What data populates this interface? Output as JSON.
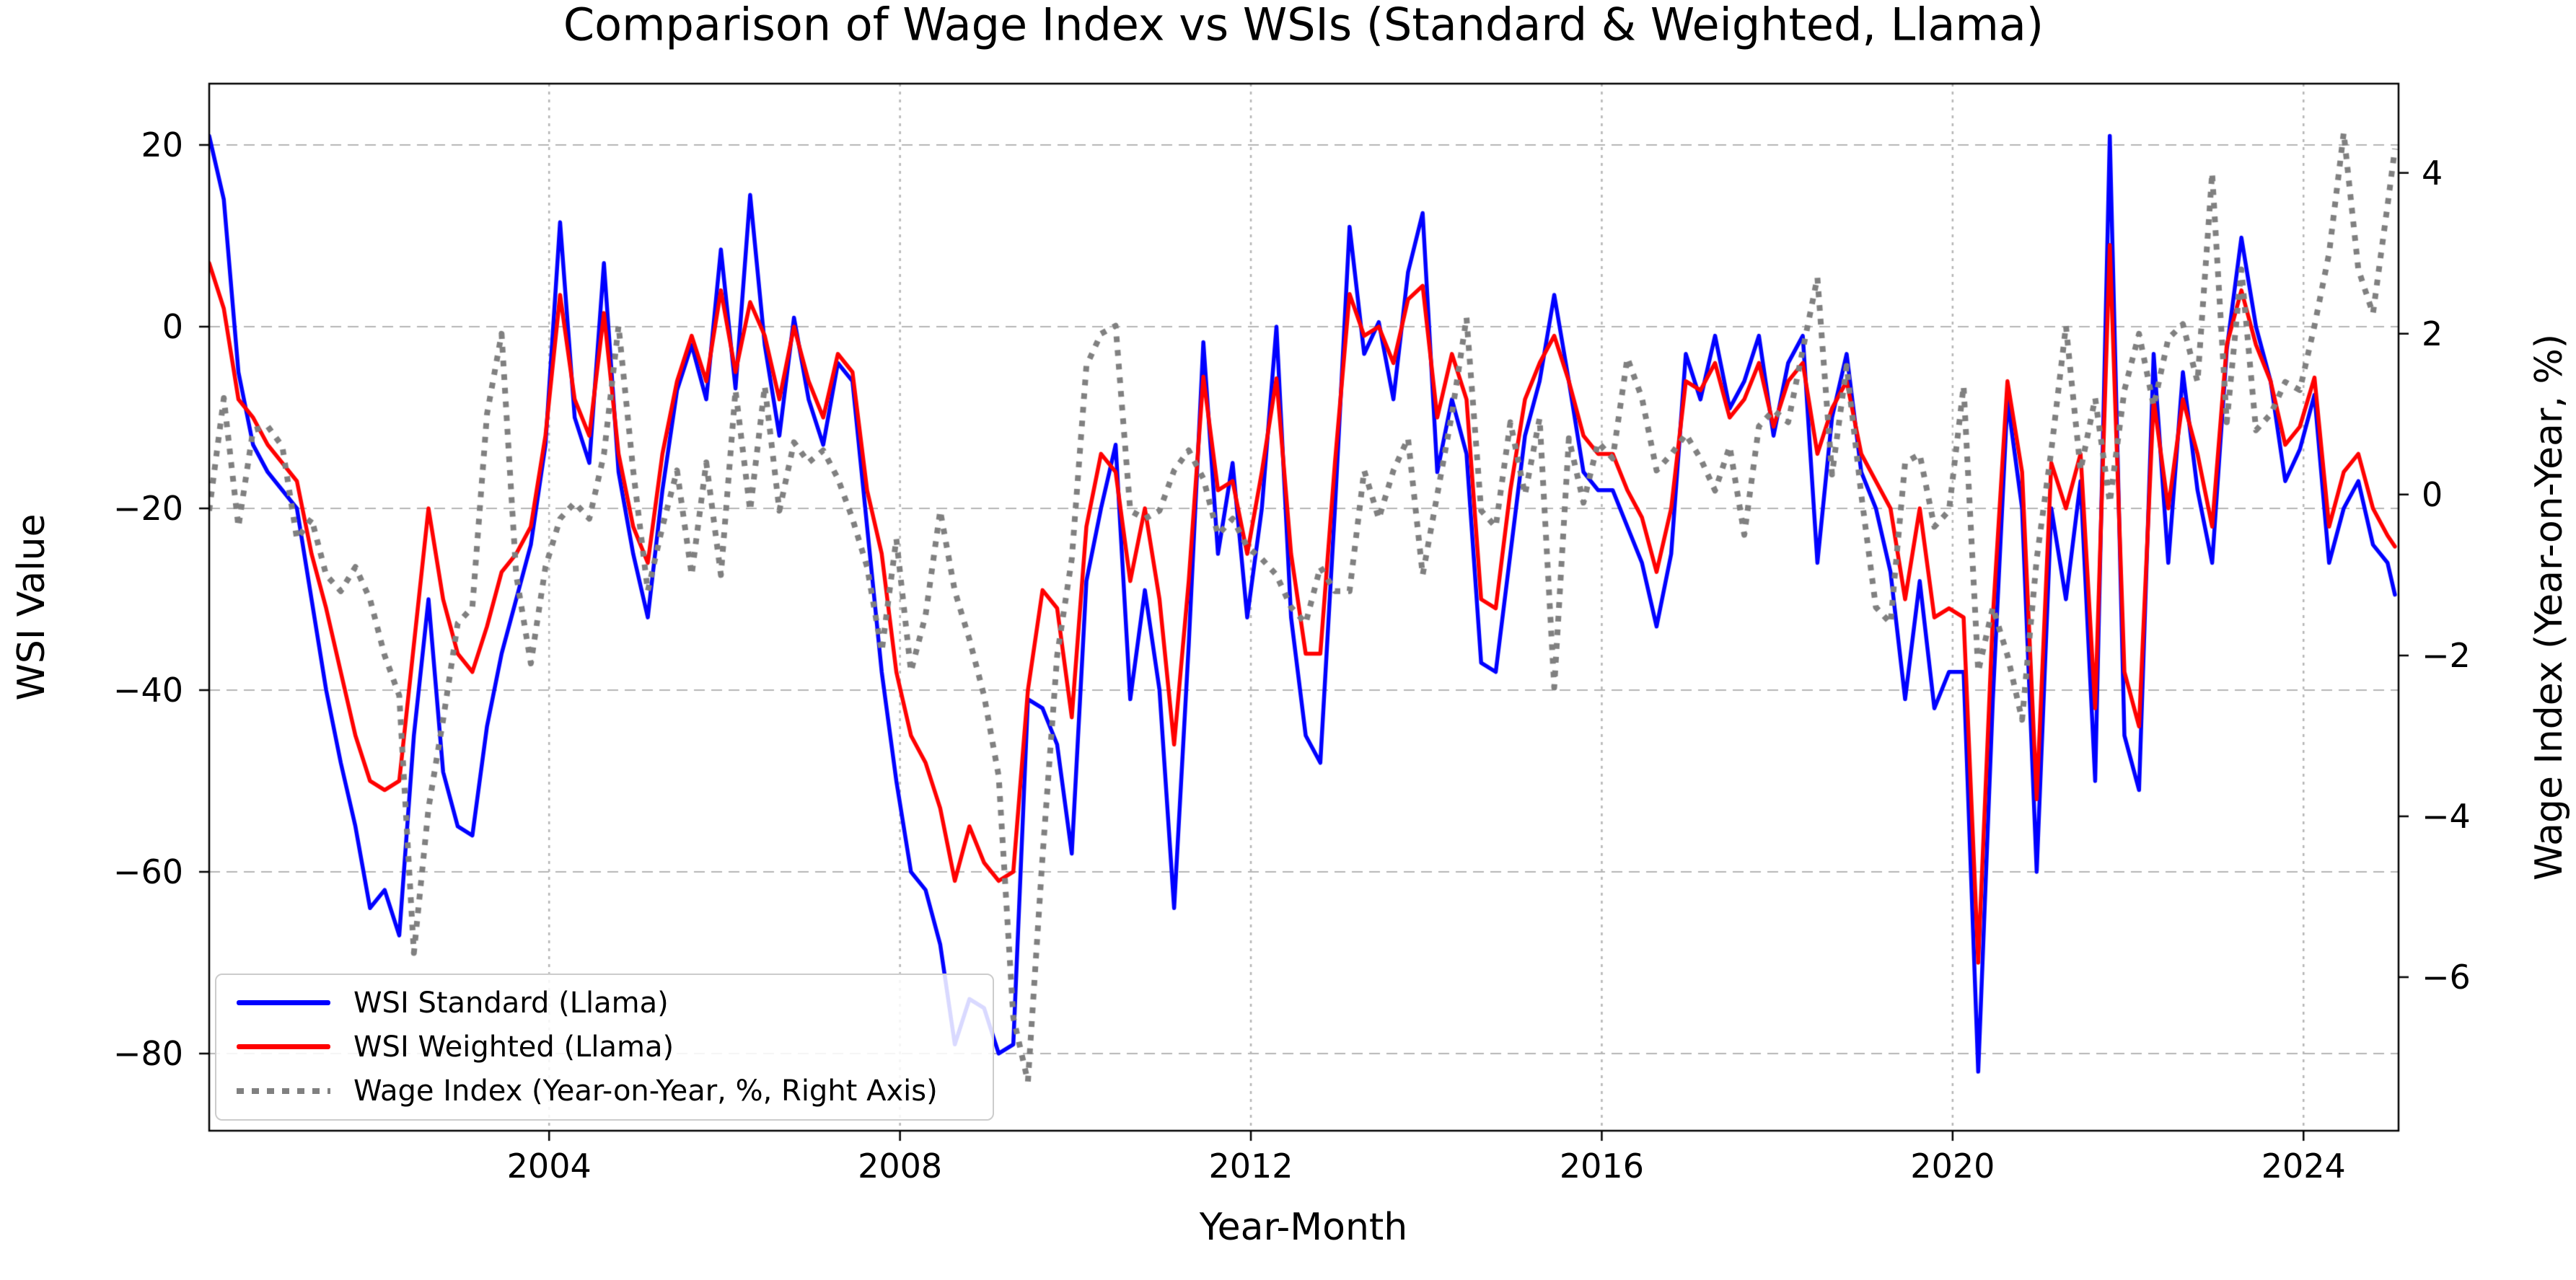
{
  "chart_data": {
    "type": "line",
    "title": "Comparison of Wage Index vs WSIs (Standard & Weighted, Llama)",
    "xlabel": "Year-Month",
    "ylabel_left": "WSI Value",
    "ylabel_right": "Wage Index (Year-on-Year, %)",
    "grid": true,
    "legend_position": "lower left",
    "xlim": [
      2000.125,
      2025.0833
    ],
    "ylim_left": [
      -88.5,
      26.75
    ],
    "ylim_right": [
      -7.91,
      5.11
    ],
    "x_ticks": {
      "values": [
        2004,
        2008,
        2012,
        2016,
        2020,
        2024
      ],
      "labels": [
        "2004",
        "2008",
        "2012",
        "2016",
        "2020",
        "2024"
      ]
    },
    "y_ticks_left": {
      "values": [
        20,
        0,
        -20,
        -40,
        -60,
        -80
      ],
      "labels": [
        "20",
        "0",
        "−20",
        "−40",
        "−60",
        "−80"
      ]
    },
    "y_ticks_right": {
      "values": [
        4,
        2,
        0,
        -2,
        -4,
        -6
      ],
      "labels": [
        "4",
        "2",
        "0",
        "−2",
        "−4",
        "−6"
      ]
    },
    "x": [
      "2000-02",
      "2000-04",
      "2000-06",
      "2000-08",
      "2000-10",
      "2000-12",
      "2001-02",
      "2001-04",
      "2001-06",
      "2001-08",
      "2001-10",
      "2001-12",
      "2002-02",
      "2002-04",
      "2002-06",
      "2002-08",
      "2002-10",
      "2002-12",
      "2003-02",
      "2003-04",
      "2003-06",
      "2003-08",
      "2003-10",
      "2003-12",
      "2004-02",
      "2004-04",
      "2004-06",
      "2004-08",
      "2004-10",
      "2004-12",
      "2005-02",
      "2005-04",
      "2005-06",
      "2005-08",
      "2005-10",
      "2005-12",
      "2006-02",
      "2006-04",
      "2006-06",
      "2006-08",
      "2006-10",
      "2006-12",
      "2007-02",
      "2007-04",
      "2007-06",
      "2007-08",
      "2007-10",
      "2007-12",
      "2008-02",
      "2008-04",
      "2008-06",
      "2008-08",
      "2008-10",
      "2008-12",
      "2009-02",
      "2009-04",
      "2009-06",
      "2009-08",
      "2009-10",
      "2009-12",
      "2010-02",
      "2010-04",
      "2010-06",
      "2010-08",
      "2010-10",
      "2010-12",
      "2011-02",
      "2011-04",
      "2011-06",
      "2011-08",
      "2011-10",
      "2011-12",
      "2012-02",
      "2012-04",
      "2012-06",
      "2012-08",
      "2012-10",
      "2012-12",
      "2013-02",
      "2013-04",
      "2013-06",
      "2013-08",
      "2013-10",
      "2013-12",
      "2014-02",
      "2014-04",
      "2014-06",
      "2014-08",
      "2014-10",
      "2014-12",
      "2015-02",
      "2015-04",
      "2015-06",
      "2015-08",
      "2015-10",
      "2015-12",
      "2016-02",
      "2016-04",
      "2016-06",
      "2016-08",
      "2016-10",
      "2016-12",
      "2017-02",
      "2017-04",
      "2017-06",
      "2017-08",
      "2017-10",
      "2017-12",
      "2018-02",
      "2018-04",
      "2018-06",
      "2018-08",
      "2018-10",
      "2018-12",
      "2019-02",
      "2019-04",
      "2019-06",
      "2019-08",
      "2019-10",
      "2019-12",
      "2020-02",
      "2020-04",
      "2020-06",
      "2020-08",
      "2020-10",
      "2020-12",
      "2021-02",
      "2021-04",
      "2021-06",
      "2021-08",
      "2021-10",
      "2021-12",
      "2022-02",
      "2022-04",
      "2022-06",
      "2022-08",
      "2022-10",
      "2022-12",
      "2023-02",
      "2023-04",
      "2023-06",
      "2023-08",
      "2023-10",
      "2023-12",
      "2024-02",
      "2024-04",
      "2024-06",
      "2024-08",
      "2024-10",
      "2024-12",
      "2025-01"
    ],
    "series": [
      {
        "name": "WSI Standard (Llama)",
        "axis": "left",
        "color": "#0000ff",
        "style": "solid",
        "values": [
          21,
          14,
          -5,
          -13,
          -16,
          -18,
          -20,
          -30,
          -40,
          -48,
          -55,
          -64,
          -62,
          -67,
          -45,
          -30,
          -49,
          -55,
          -56,
          -44,
          -36,
          -30,
          -24,
          -13,
          11.5,
          -10,
          -15,
          7,
          -16,
          -25,
          -32,
          -18,
          -7,
          -2,
          -8,
          8.5,
          -6.8,
          14.5,
          -2,
          -12,
          1,
          -8,
          -13,
          -4,
          -6,
          -22,
          -38,
          -50,
          -60,
          -62,
          -68,
          -79,
          -74,
          -75,
          -80,
          -79,
          -41,
          -42,
          -46,
          -58,
          -28,
          -20,
          -13,
          -41,
          -29,
          -40,
          -64,
          -35,
          -1.7,
          -25,
          -15,
          -32,
          -20,
          0,
          -32,
          -45,
          -48,
          -20,
          11,
          -3,
          0.5,
          -8,
          6,
          12.5,
          -16,
          -8,
          -14,
          -37,
          -38,
          -25,
          -12,
          -6,
          3.5,
          -6,
          -16,
          -18,
          -18,
          -22,
          -26,
          -33,
          -25,
          -3,
          -8,
          -1,
          -9,
          -6,
          -1,
          -12,
          -4,
          -1,
          -26,
          -10,
          -3,
          -16,
          -20,
          -27,
          -41,
          -28,
          -42,
          -38,
          -38,
          -82,
          -41,
          -8,
          -20,
          -60,
          -20,
          -30,
          -17,
          -50,
          21,
          -45,
          -51,
          -3,
          -26,
          -5,
          -18,
          -26,
          -2.5,
          9.8,
          0,
          -6,
          -17,
          -13.5,
          -7.5,
          -26,
          -20,
          -17,
          -24,
          -26,
          -29.5
        ]
      },
      {
        "name": "WSI Weighted (Llama)",
        "axis": "left",
        "color": "#ff0000",
        "style": "solid",
        "values": [
          7,
          2,
          -8,
          -10,
          -13,
          -15,
          -17,
          -25,
          -31,
          -38,
          -45,
          -50,
          -51,
          -50,
          -35,
          -20,
          -30,
          -36,
          -38,
          -33,
          -27,
          -25,
          -22,
          -12,
          3.5,
          -8,
          -12,
          1.5,
          -14,
          -22,
          -26,
          -14,
          -6,
          -1,
          -6,
          4,
          -5,
          2.7,
          -1,
          -8,
          0,
          -6,
          -10,
          -3,
          -5,
          -18,
          -25,
          -38,
          -45,
          -48,
          -53,
          -61,
          -55,
          -59,
          -61,
          -60,
          -40,
          -29,
          -31,
          -43,
          -22,
          -14,
          -16,
          -28,
          -20,
          -30,
          -46,
          -28,
          -5.5,
          -18,
          -17,
          -25,
          -16,
          -5.7,
          -25,
          -36,
          -36,
          -15,
          3.6,
          -1,
          0,
          -4,
          3,
          4.5,
          -10,
          -3,
          -8,
          -30,
          -31,
          -18,
          -8,
          -4,
          -1,
          -6,
          -12,
          -14,
          -14,
          -18,
          -21,
          -27,
          -20,
          -6,
          -7,
          -4,
          -10,
          -8,
          -4,
          -11,
          -6,
          -4,
          -14,
          -9,
          -6,
          -14,
          -17,
          -20,
          -30,
          -20,
          -32,
          -31,
          -32,
          -70,
          -32,
          -6,
          -16,
          -52,
          -15,
          -20,
          -14,
          -42,
          9,
          -38,
          -44,
          -8,
          -20,
          -8,
          -14,
          -22,
          -2,
          4,
          -2,
          -6,
          -13,
          -11,
          -5.6,
          -22,
          -16,
          -14,
          -20,
          -23,
          -24.2
        ]
      },
      {
        "name": "Wage Index (Year-on-Year, %, Right Axis)",
        "axis": "right",
        "color": "#808080",
        "style": "dotted",
        "values": [
          -0.2,
          1.2,
          -0.4,
          0.8,
          0.85,
          0.6,
          -0.55,
          -0.3,
          -1.0,
          -1.2,
          -0.9,
          -1.3,
          -2.0,
          -2.5,
          -5.7,
          -3.9,
          -2.8,
          -1.6,
          -1.4,
          1.0,
          2.0,
          -1.0,
          -2.1,
          -0.9,
          -0.3,
          -0.1,
          -0.3,
          0.5,
          2.1,
          0.3,
          -1.2,
          -0.4,
          0.3,
          -1.0,
          0.4,
          -1.0,
          1.3,
          -0.2,
          1.35,
          -0.2,
          0.65,
          0.4,
          0.55,
          0.2,
          -0.3,
          -0.9,
          -1.95,
          -0.55,
          -2.2,
          -1.5,
          -0.2,
          -1.2,
          -1.8,
          -2.5,
          -3.5,
          -6.5,
          -7.3,
          -4.5,
          -2.0,
          -0.8,
          1.6,
          2.0,
          2.1,
          -0.2,
          -0.3,
          -0.2,
          0.3,
          0.55,
          0.2,
          -0.5,
          -0.3,
          -0.65,
          -0.8,
          -1.0,
          -1.4,
          -1.6,
          -0.9,
          -1.2,
          -1.2,
          0.3,
          -0.3,
          0.3,
          0.7,
          -1.0,
          0.0,
          1.0,
          2.2,
          -0.2,
          -0.4,
          0.9,
          0.0,
          0.95,
          -2.4,
          0.7,
          -0.1,
          0.65,
          0.45,
          1.7,
          1.2,
          0.3,
          0.5,
          0.75,
          0.45,
          0.05,
          0.6,
          -0.5,
          0.85,
          1.05,
          0.9,
          1.8,
          2.7,
          0.25,
          1.6,
          0.0,
          -1.4,
          -1.6,
          0.4,
          0.5,
          -0.4,
          -0.2,
          1.35,
          -2.2,
          -1.4,
          -2.0,
          -2.8,
          -0.8,
          0.55,
          2.1,
          0.3,
          1.2,
          -0.1,
          1.3,
          2.0,
          1.1,
          1.94,
          2.12,
          1.4,
          4.0,
          0.9,
          2.8,
          0.8,
          1.0,
          1.4,
          1.3,
          2.1,
          3.0,
          4.5,
          2.8,
          2.25,
          3.6,
          4.3
        ]
      }
    ],
    "legend_entries": [
      "WSI Standard (Llama)",
      "WSI Weighted (Llama)",
      "Wage Index (Year-on-Year, %, Right Axis)"
    ]
  }
}
